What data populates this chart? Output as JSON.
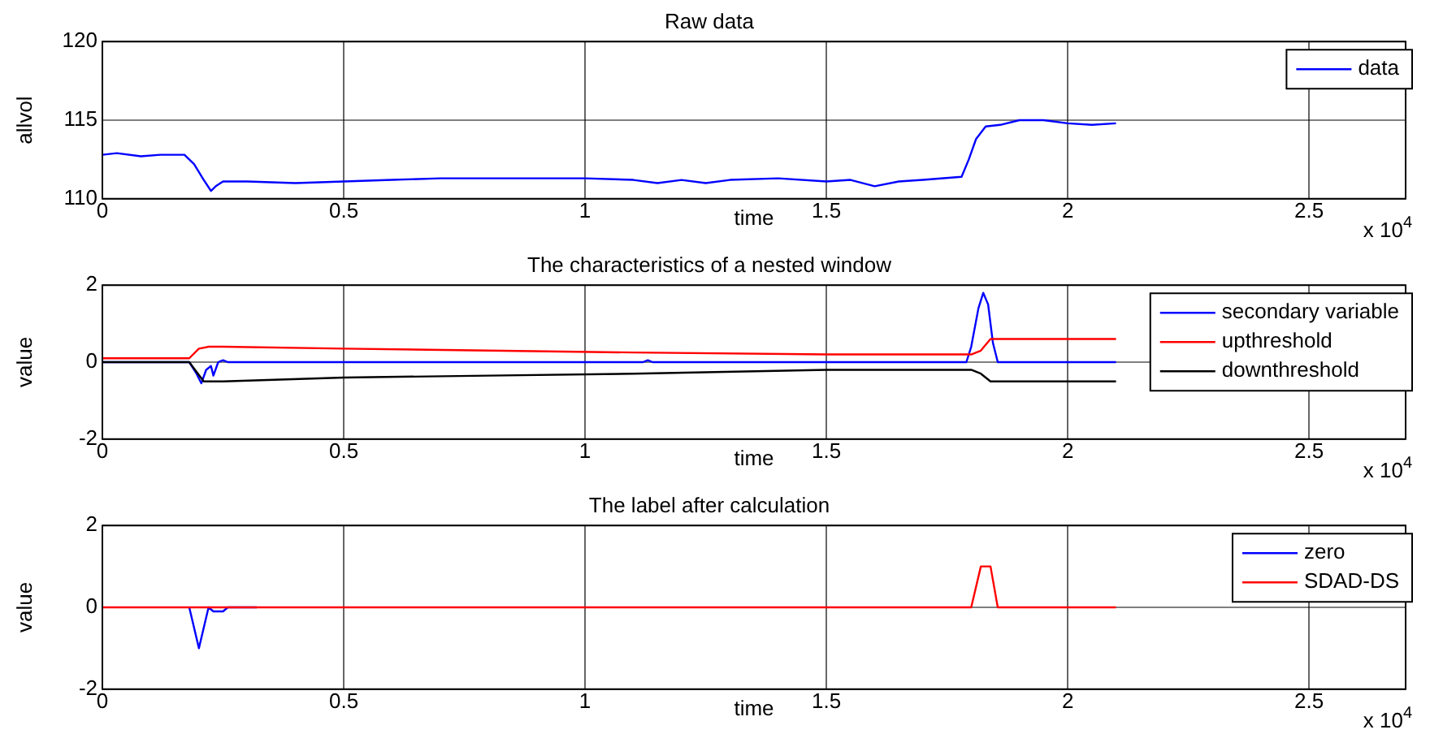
{
  "chart_data": [
    {
      "type": "line",
      "title": "Raw data",
      "xlabel": "time",
      "ylabel": "allvol",
      "xlim": [
        0,
        2.7
      ],
      "xticks": [
        0,
        0.5,
        1,
        1.5,
        2,
        2.5
      ],
      "ylim": [
        110,
        120
      ],
      "yticks": [
        110,
        115,
        120
      ],
      "grid": true,
      "legend": "top right",
      "marker": "none",
      "line_style": "solid",
      "annotations": [
        "x 10$^{4}$"
      ],
      "series": [
        {
          "name": "data",
          "color": "#0000ff",
          "x": [
            0,
            0.03,
            0.08,
            0.12,
            0.17,
            0.19,
            0.21,
            0.225,
            0.235,
            0.25,
            0.3,
            0.4,
            0.5,
            0.6,
            0.7,
            0.8,
            0.9,
            1.0,
            1.1,
            1.15,
            1.2,
            1.25,
            1.3,
            1.4,
            1.5,
            1.55,
            1.6,
            1.65,
            1.7,
            1.78,
            1.795,
            1.81,
            1.83,
            1.86,
            1.9,
            1.95,
            2.0,
            2.05,
            2.1
          ],
          "values": [
            112.8,
            112.9,
            112.7,
            112.8,
            112.8,
            112.2,
            111.2,
            110.5,
            110.8,
            111.1,
            111.1,
            111.0,
            111.1,
            111.2,
            111.3,
            111.3,
            111.3,
            111.3,
            111.2,
            111.0,
            111.2,
            111.0,
            111.2,
            111.3,
            111.1,
            111.2,
            110.8,
            111.1,
            111.2,
            111.4,
            112.5,
            113.8,
            114.6,
            114.7,
            115.0,
            115.0,
            114.8,
            114.7,
            114.8
          ]
        }
      ]
    },
    {
      "type": "line",
      "title": "The characteristics of a nested window",
      "xlabel": "time",
      "ylabel": "value",
      "xlim": [
        0,
        2.7
      ],
      "xticks": [
        0,
        0.5,
        1,
        1.5,
        2,
        2.5
      ],
      "ylim": [
        -2,
        2
      ],
      "yticks": [
        -2,
        0,
        2
      ],
      "grid": true,
      "legend": "top right",
      "marker": "none",
      "line_style": "solid",
      "annotations": [
        "x 10$^{4}$"
      ],
      "series": [
        {
          "name": "secondary variable",
          "color": "#0000ff",
          "x": [
            0,
            0.18,
            0.195,
            0.205,
            0.215,
            0.225,
            0.23,
            0.24,
            0.25,
            0.26,
            1.12,
            1.13,
            1.14,
            1.79,
            1.8,
            1.815,
            1.825,
            1.835,
            1.845,
            1.855,
            1.9,
            2.1
          ],
          "values": [
            0,
            0,
            -0.3,
            -0.55,
            -0.2,
            -0.1,
            -0.35,
            0,
            0.05,
            0,
            0,
            0.05,
            0,
            0,
            0.4,
            1.4,
            1.8,
            1.5,
            0.5,
            0,
            0,
            0
          ]
        },
        {
          "name": "upthreshold",
          "color": "#ff0000",
          "x": [
            0,
            0.18,
            0.2,
            0.22,
            0.25,
            0.5,
            0.8,
            1.1,
            1.5,
            1.8,
            1.82,
            1.84,
            2.1
          ],
          "values": [
            0.1,
            0.1,
            0.35,
            0.4,
            0.4,
            0.35,
            0.3,
            0.25,
            0.2,
            0.2,
            0.3,
            0.6,
            0.6
          ]
        },
        {
          "name": "downthreshold",
          "color": "#000000",
          "x": [
            0,
            0.18,
            0.21,
            0.25,
            0.5,
            0.8,
            1.1,
            1.5,
            1.8,
            1.82,
            1.84,
            2.1
          ],
          "values": [
            0,
            0,
            -0.5,
            -0.5,
            -0.4,
            -0.35,
            -0.3,
            -0.2,
            -0.2,
            -0.3,
            -0.5,
            -0.5
          ]
        }
      ]
    },
    {
      "type": "line",
      "title": "The label after calculation",
      "xlabel": "time",
      "ylabel": "value",
      "xlim": [
        0,
        2.7
      ],
      "xticks": [
        0,
        0.5,
        1,
        1.5,
        2,
        2.5
      ],
      "ylim": [
        -2,
        2
      ],
      "yticks": [
        -2,
        0,
        2
      ],
      "grid": true,
      "legend": "top right",
      "marker": "none",
      "line_style": "solid",
      "annotations": [
        "x 10$^{4}$"
      ],
      "series": [
        {
          "name": "zero",
          "color": "#0000ff",
          "x": [
            0.18,
            0.2,
            0.22,
            0.23,
            0.25,
            0.26,
            0.32
          ],
          "values": [
            0,
            -1,
            0,
            -0.1,
            -0.1,
            0,
            0
          ]
        },
        {
          "name": "SDAD-DS",
          "color": "#ff0000",
          "x": [
            0,
            1.8,
            1.82,
            1.84,
            1.855,
            2.1
          ],
          "values": [
            0,
            0,
            1,
            1,
            0,
            0
          ]
        }
      ]
    }
  ]
}
